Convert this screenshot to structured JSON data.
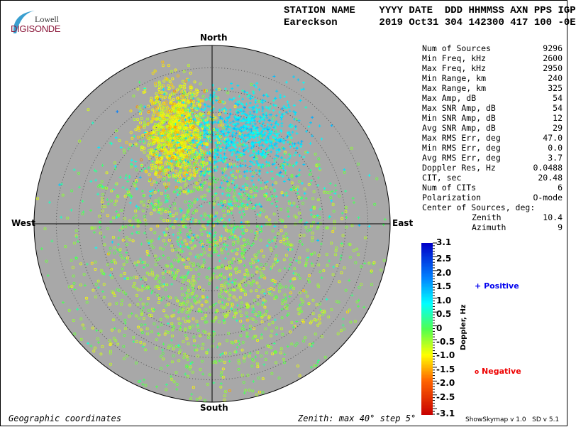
{
  "logo": {
    "line1": "Lowell",
    "line2": "DIGISONDE"
  },
  "header": {
    "line1": "STATION NAME    YYYY DATE  DDD HHMMSS AXN PPS IGP",
    "line2": "Eareckson       2019 Oct31 304 142300 417 100 -0E"
  },
  "stats": [
    {
      "label": "Num of Sources",
      "value": "9296"
    },
    {
      "label": "Min Freq, kHz",
      "value": "2600"
    },
    {
      "label": "Max Freq, kHz",
      "value": "2950"
    },
    {
      "label": "Min Range, km",
      "value": "240"
    },
    {
      "label": "Max Range, km",
      "value": "325"
    },
    {
      "label": "Max Amp, dB",
      "value": "54"
    },
    {
      "label": "Max SNR Amp, dB",
      "value": "54"
    },
    {
      "label": "Min SNR Amp, dB",
      "value": "12"
    },
    {
      "label": "Avg SNR Amp, dB",
      "value": "29"
    },
    {
      "label": "Max RMS Err, deg",
      "value": "47.0"
    },
    {
      "label": "Min RMS Err, deg",
      "value": "0.0"
    },
    {
      "label": "Avg RMS Err, deg",
      "value": "3.7"
    },
    {
      "label": "Doppler Res, Hz",
      "value": "0.0488"
    },
    {
      "label": "CIT, sec",
      "value": "20.48"
    },
    {
      "label": "Num of CITs",
      "value": "6"
    },
    {
      "label": "Polarization",
      "value": "O-mode"
    }
  ],
  "center": {
    "title": "Center of Sources, deg:",
    "zenith_label": "Zenith",
    "zenith": "10.4",
    "azimuth_label": "Azimuth",
    "azimuth": "9"
  },
  "chart_data": {
    "type": "scatter",
    "projection": "polar skymap",
    "directions": {
      "north": "North",
      "south": "South",
      "east": "East",
      "west": "West"
    },
    "zenith_max_deg": 40,
    "zenith_step_deg": 5,
    "colorbar": {
      "label": "Doppler, Hz",
      "range": [
        -3.1,
        3.1
      ],
      "ticks": [
        "3.1",
        "2.5",
        "2.0",
        "1.5",
        "1.0",
        "0.5",
        "0",
        "-0.5",
        "-1.0",
        "-1.5",
        "-2.0",
        "-2.5",
        "-3.1"
      ]
    },
    "legend": {
      "positive": "Positive",
      "negative": "Negative",
      "positive_marker": "+",
      "negative_marker": "o",
      "positive_color": "#0000ee",
      "negative_color": "#ee0000"
    },
    "num_sources": 9296
  },
  "footer": {
    "left": "Geographic coordinates",
    "zenith": "Zenith: max 40°  step 5°",
    "version": "ShowSkymap v 1.0   SD v 5.1"
  },
  "colors": {
    "plot_bg": "#a8a8a8"
  }
}
